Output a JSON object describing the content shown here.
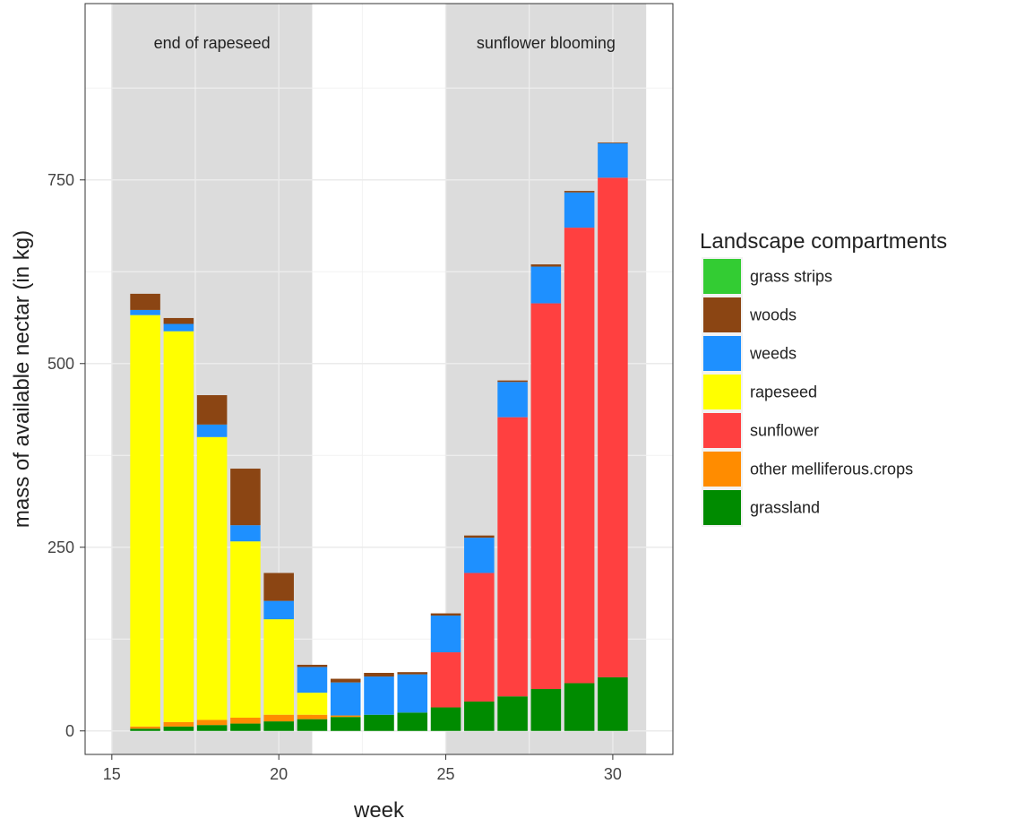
{
  "chart_data": {
    "type": "bar",
    "stacked": true,
    "xlabel": "week",
    "ylabel": "mass of available nectar (in kg)",
    "xlim": [
      14.2,
      31.8
    ],
    "ylim": [
      -32,
      990
    ],
    "x_ticks": [
      15,
      20,
      25,
      30
    ],
    "y_ticks": [
      0,
      250,
      500,
      750
    ],
    "grid": true,
    "legend": {
      "title": "Landscape compartments",
      "position": "right"
    },
    "shaded_periods": [
      {
        "label": "end of rapeseed",
        "start": 15,
        "end": 21,
        "color": "#dcdcdc"
      },
      {
        "label": "sunflower blooming",
        "start": 25,
        "end": 31,
        "color": "#dcdcdc"
      }
    ],
    "x": [
      16,
      17,
      18,
      19,
      20,
      21,
      22,
      23,
      24,
      25,
      26,
      27,
      28,
      29,
      30
    ],
    "stack_order_bottom_to_top": [
      "grassland",
      "other melliferous.crops",
      "sunflower",
      "rapeseed",
      "weeds",
      "woods",
      "grass strips"
    ],
    "series": [
      {
        "name": "grass strips",
        "color": "#33cc33",
        "values": [
          0,
          0,
          0,
          0,
          0,
          0,
          0,
          0,
          0,
          0,
          0,
          0,
          0,
          0,
          0
        ]
      },
      {
        "name": "woods",
        "color": "#8b4513",
        "values": [
          22,
          8,
          40,
          77,
          38,
          3,
          5,
          5,
          3,
          3,
          3,
          2,
          3,
          2,
          1
        ]
      },
      {
        "name": "weeds",
        "color": "#1e90ff",
        "values": [
          7,
          10,
          17,
          22,
          25,
          35,
          45,
          52,
          52,
          50,
          48,
          48,
          50,
          48,
          47
        ]
      },
      {
        "name": "rapeseed",
        "color": "#ffff00",
        "values": [
          560,
          532,
          385,
          240,
          130,
          30,
          0,
          0,
          0,
          0,
          0,
          0,
          0,
          0,
          0
        ]
      },
      {
        "name": "sunflower",
        "color": "#ff4040",
        "values": [
          0,
          0,
          0,
          0,
          0,
          0,
          0,
          0,
          0,
          75,
          175,
          380,
          525,
          620,
          680
        ]
      },
      {
        "name": "other melliferous.crops",
        "color": "#ff8c00",
        "values": [
          3,
          6,
          7,
          8,
          9,
          6,
          2,
          0,
          0,
          0,
          0,
          0,
          0,
          0,
          0
        ]
      },
      {
        "name": "grassland",
        "color": "#008b00",
        "values": [
          3,
          6,
          8,
          10,
          13,
          16,
          19,
          22,
          25,
          32,
          40,
          47,
          57,
          65,
          73
        ]
      }
    ]
  }
}
